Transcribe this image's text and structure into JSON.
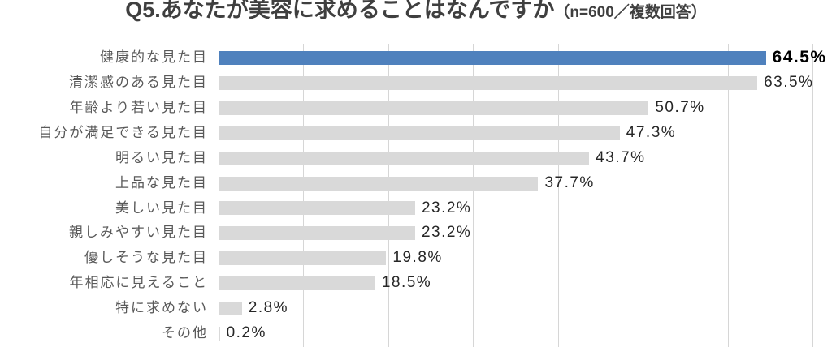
{
  "title": {
    "main": "Q5.あなたが美容に求めることはなんですか",
    "note": "（n=600／複数回答）"
  },
  "chart_data": {
    "type": "bar",
    "orientation": "horizontal",
    "title": "Q5.あなたが美容に求めることはなんですか（n=600／複数回答）",
    "n": 600,
    "categories": [
      "健康的な見た目",
      "清潔感のある見た目",
      "年齢より若い見た目",
      "自分が満足できる見た目",
      "明るい見た目",
      "上品な見た目",
      "美しい見た目",
      "親しみやすい見た目",
      "優しそうな見た目",
      "年相応に見えること",
      "特に求めない",
      "その他"
    ],
    "values": [
      64.5,
      63.5,
      50.7,
      47.3,
      43.7,
      37.7,
      23.2,
      23.2,
      19.8,
      18.5,
      2.8,
      0.2
    ],
    "value_labels": [
      "64.5%",
      "63.5%",
      "50.7%",
      "47.3%",
      "43.7%",
      "37.7%",
      "23.2%",
      "23.2%",
      "19.8%",
      "18.5%",
      "2.8%",
      "0.2%"
    ],
    "xlim": [
      0,
      70
    ],
    "gridline_interval": 10,
    "grid": true,
    "legend": "none",
    "highlight_index": 0,
    "colors": {
      "highlight_bar": "#4f81bd",
      "default_bar": "#d9d9d9",
      "gridline": "#d6d6d6",
      "title_text": "#3f3f3f",
      "category_label": "#595959",
      "value_label": "#262626",
      "highlight_value_label": "#000000"
    }
  }
}
